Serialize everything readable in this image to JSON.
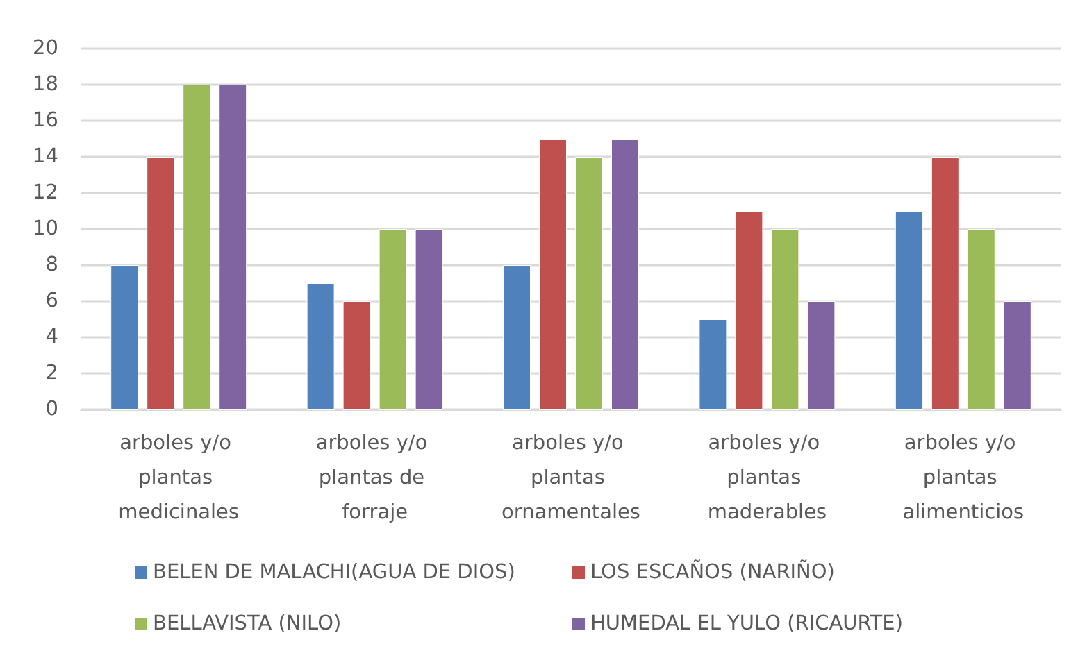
{
  "chart_data": {
    "type": "bar",
    "categories": [
      "arboles y/o plantas medicinales",
      "arboles y/o plantas de forraje",
      "arboles y/o plantas ornamentales",
      "arboles y/o plantas maderables",
      "arboles y/o plantas alimenticios"
    ],
    "series": [
      {
        "name": "BELEN DE MALACHI(AGUA DE DIOS)",
        "color": "#4f81bd",
        "values": [
          8,
          7,
          8,
          5,
          11
        ]
      },
      {
        "name": "LOS ESCAÑOS (NARIÑO)",
        "color": "#c0504d",
        "values": [
          14,
          6,
          15,
          11,
          14
        ]
      },
      {
        "name": "BELLAVISTA (NILO)",
        "color": "#9bbb59",
        "values": [
          18,
          10,
          14,
          10,
          10
        ]
      },
      {
        "name": "HUMEDAL EL YULO (RICAURTE)",
        "color": "#8064a2",
        "values": [
          18,
          10,
          15,
          6,
          6
        ]
      }
    ],
    "ylim": [
      0,
      20
    ],
    "yticks": [
      0,
      2,
      4,
      6,
      8,
      10,
      12,
      14,
      16,
      18,
      20
    ],
    "grid": "y",
    "legend": "bottom"
  }
}
